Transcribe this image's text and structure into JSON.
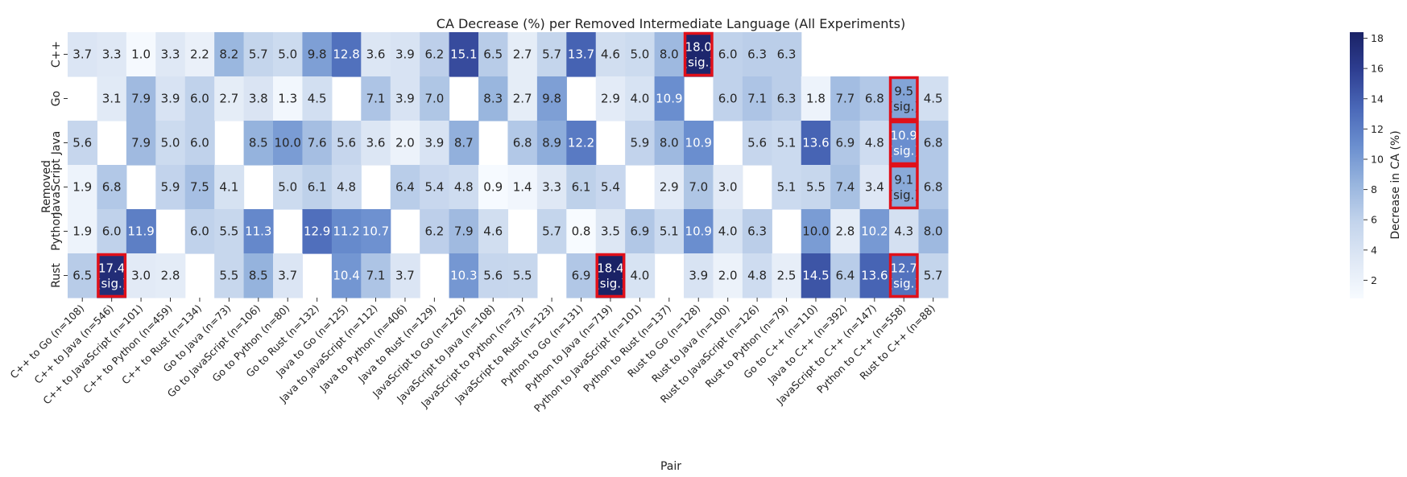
{
  "chart_data": {
    "type": "heatmap",
    "title": "CA Decrease (%) per Removed Intermediate Language (All Experiments)",
    "xlabel": "Pair",
    "ylabel": "Removed",
    "colorbar_label": "Decrease in CA (%)",
    "colorbar_ticks": [
      "2",
      "4",
      "6",
      "8",
      "10",
      "12",
      "14",
      "16",
      "18"
    ],
    "colormap": [
      "#f7fbff",
      "#dfe8f5",
      "#c3d4ec",
      "#98b5de",
      "#6b8fcf",
      "#4a68b8",
      "#2e3e91",
      "#1a2266"
    ],
    "vmin": 0.8,
    "vmax": 18.4,
    "highlight_color": "#e0101a",
    "sig_label": "(sig.)",
    "rows": [
      "C++",
      "Go",
      "Java",
      "JavaScript",
      "Python",
      "Rust"
    ],
    "columns": [
      "C++ to Go (n=108)",
      "C++ to Java (n=546)",
      "C++ to JavaScript (n=101)",
      "C++ to Python (n=459)",
      "C++ to Rust (n=134)",
      "Go to Java (n=73)",
      "Go to JavaScript (n=106)",
      "Go to Python (n=80)",
      "Go to Rust (n=132)",
      "Java to Go (n=125)",
      "Java to JavaScript (n=112)",
      "Java to Python (n=406)",
      "Java to Rust (n=129)",
      "JavaScript to Go (n=126)",
      "JavaScript to Java (n=108)",
      "JavaScript to Python (n=73)",
      "JavaScript to Rust (n=123)",
      "Python to Go (n=131)",
      "Python to Java (n=719)",
      "Python to JavaScript (n=101)",
      "Python to Rust (n=137)",
      "Rust to Go (n=128)",
      "Rust to Java (n=100)",
      "Rust to JavaScript (n=126)",
      "Rust to Python (n=79)",
      "Go to C++ (n=110)",
      "Java to C++ (n=392)",
      "JavaScript to C++ (n=147)",
      "Python to C++ (n=558)",
      "Rust to C++ (n=88)"
    ],
    "values": [
      [
        3.7,
        3.3,
        1.0,
        3.3,
        2.2,
        8.2,
        5.7,
        5.0,
        9.8,
        12.8,
        3.6,
        3.9,
        6.2,
        15.1,
        6.5,
        2.7,
        5.7,
        13.7,
        4.6,
        5.0,
        8.0,
        18.0,
        6.0,
        6.3,
        6.3,
        null,
        null,
        null,
        null,
        null
      ],
      [
        null,
        3.1,
        7.9,
        3.9,
        6.0,
        2.7,
        3.8,
        1.3,
        4.5,
        null,
        7.1,
        3.9,
        7.0,
        null,
        8.3,
        2.7,
        9.8,
        null,
        2.9,
        4.0,
        10.9,
        null,
        6.0,
        7.1,
        6.3,
        1.8,
        7.7,
        6.8,
        9.5,
        4.5
      ],
      [
        5.6,
        null,
        7.9,
        5.0,
        6.0,
        null,
        8.5,
        10.0,
        7.6,
        5.6,
        3.6,
        2.0,
        3.9,
        8.7,
        null,
        6.8,
        8.9,
        12.2,
        null,
        5.9,
        8.0,
        10.9,
        null,
        5.6,
        5.1,
        13.6,
        6.9,
        4.8,
        10.9,
        6.8
      ],
      [
        1.9,
        6.8,
        null,
        5.9,
        7.5,
        4.1,
        null,
        5.0,
        6.1,
        4.8,
        null,
        6.4,
        5.4,
        4.8,
        0.9,
        1.4,
        3.3,
        6.1,
        5.4,
        null,
        2.9,
        7.0,
        3.0,
        null,
        5.1,
        5.5,
        7.4,
        3.4,
        9.1,
        6.8
      ],
      [
        1.9,
        6.0,
        11.9,
        null,
        6.0,
        5.5,
        11.3,
        null,
        12.9,
        11.2,
        10.7,
        null,
        6.2,
        7.9,
        4.6,
        null,
        5.7,
        0.8,
        3.5,
        6.9,
        5.1,
        10.9,
        4.0,
        6.3,
        null,
        10.0,
        2.8,
        10.2,
        4.3,
        8.0
      ],
      [
        6.5,
        17.4,
        3.0,
        2.8,
        null,
        5.5,
        8.5,
        3.7,
        null,
        10.4,
        7.1,
        3.7,
        null,
        10.3,
        5.6,
        5.5,
        null,
        6.9,
        18.4,
        4.0,
        null,
        3.9,
        2.0,
        4.8,
        2.5,
        14.5,
        6.4,
        13.6,
        12.7,
        5.7
      ]
    ],
    "significant": [
      [
        0,
        21
      ],
      [
        1,
        28
      ],
      [
        2,
        28
      ],
      [
        3,
        28
      ],
      [
        5,
        1
      ],
      [
        5,
        18
      ],
      [
        5,
        28
      ]
    ]
  }
}
